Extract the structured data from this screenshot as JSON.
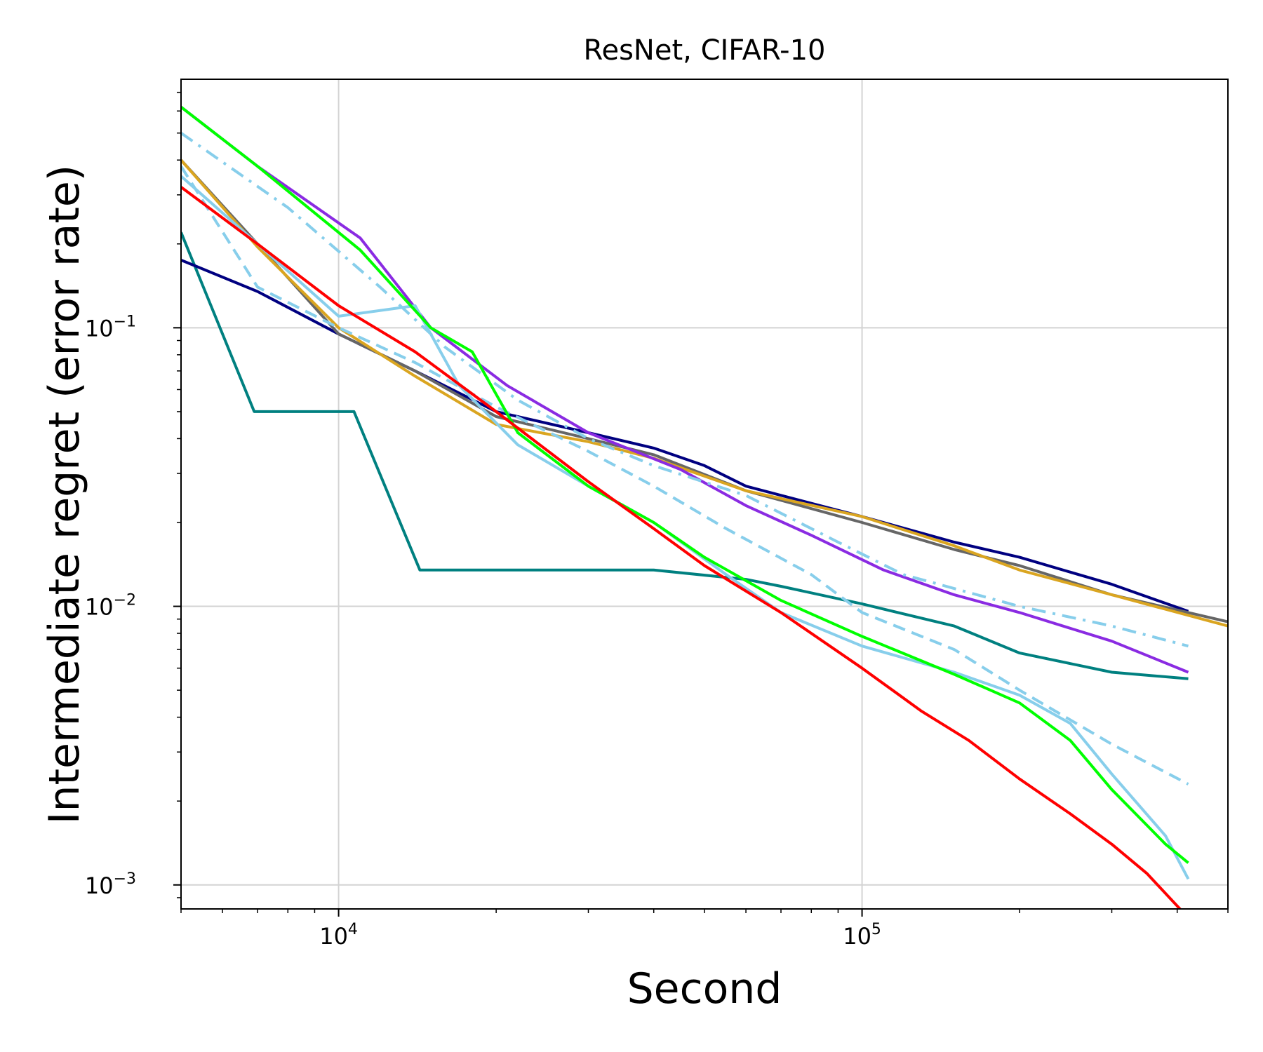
{
  "chart_data": {
    "type": "line",
    "title": "ResNet, CIFAR-10",
    "xlabel": "Second",
    "ylabel": "Intermediate regret (error rate)",
    "xscale": "log",
    "yscale": "log",
    "xlim": [
      5000,
      500000
    ],
    "ylim": [
      0.00082,
      0.78
    ],
    "grid": true,
    "x_ticks": [
      {
        "value": 10000,
        "base": "10",
        "exp": "4"
      },
      {
        "value": 100000,
        "base": "10",
        "exp": "5"
      }
    ],
    "y_ticks": [
      {
        "value": 0.1,
        "base": "10",
        "exp": "−1"
      },
      {
        "value": 0.01,
        "base": "10",
        "exp": "−2"
      },
      {
        "value": 0.001,
        "base": "10",
        "exp": "−3"
      }
    ],
    "series": [
      {
        "name": "teal",
        "color": "#008080",
        "dash": "",
        "x": [
          5000,
          6900,
          10700,
          14300,
          40000,
          60000,
          70000,
          100000,
          150000,
          200000,
          300000,
          420000
        ],
        "y": [
          0.22,
          0.05,
          0.05,
          0.0135,
          0.0135,
          0.0125,
          0.0118,
          0.0102,
          0.0085,
          0.0068,
          0.0058,
          0.0055
        ]
      },
      {
        "name": "navy",
        "color": "#000080",
        "dash": "",
        "x": [
          5000,
          7000,
          10000,
          14000,
          20000,
          30000,
          40000,
          50000,
          60000,
          100000,
          150000,
          200000,
          300000,
          420000
        ],
        "y": [
          0.175,
          0.135,
          0.095,
          0.07,
          0.05,
          0.042,
          0.037,
          0.032,
          0.027,
          0.021,
          0.017,
          0.015,
          0.012,
          0.0096
        ]
      },
      {
        "name": "gray",
        "color": "#666666",
        "dash": "",
        "x": [
          5000,
          7000,
          10000,
          14000,
          20000,
          30000,
          40000,
          60000,
          100000,
          150000,
          200000,
          300000,
          500000
        ],
        "y": [
          0.4,
          0.2,
          0.095,
          0.07,
          0.048,
          0.04,
          0.035,
          0.026,
          0.02,
          0.016,
          0.014,
          0.011,
          0.0088
        ]
      },
      {
        "name": "orange",
        "color": "#DAA520",
        "dash": "",
        "x": [
          5000,
          7000,
          10000,
          14000,
          20000,
          30000,
          40000,
          60000,
          100000,
          150000,
          200000,
          300000,
          500000
        ],
        "y": [
          0.4,
          0.195,
          0.1,
          0.067,
          0.045,
          0.039,
          0.034,
          0.026,
          0.021,
          0.0165,
          0.0135,
          0.011,
          0.0085
        ]
      },
      {
        "name": "purple",
        "color": "#8A2BE2",
        "dash": "",
        "x": [
          5000,
          7000,
          11000,
          15000,
          21000,
          30000,
          45000,
          60000,
          80000,
          110000,
          150000,
          200000,
          300000,
          420000
        ],
        "y": [
          0.62,
          0.38,
          0.21,
          0.1,
          0.062,
          0.042,
          0.031,
          0.023,
          0.018,
          0.0135,
          0.011,
          0.0095,
          0.0075,
          0.0058
        ]
      },
      {
        "name": "skyblue-dashdot",
        "color": "#87CEEB",
        "dash": "20 10 4 10",
        "x": [
          5000,
          8000,
          12000,
          16000,
          22000,
          30000,
          40000,
          60000,
          90000,
          120000,
          200000,
          300000,
          420000
        ],
        "y": [
          0.5,
          0.27,
          0.14,
          0.085,
          0.055,
          0.04,
          0.032,
          0.025,
          0.017,
          0.013,
          0.01,
          0.0085,
          0.0072
        ]
      },
      {
        "name": "skyblue-dashed",
        "color": "#87CEEB",
        "dash": "18 10",
        "x": [
          5000,
          7000,
          10000,
          14000,
          20000,
          30000,
          40000,
          55000,
          80000,
          100000,
          150000,
          200000,
          300000,
          420000
        ],
        "y": [
          0.38,
          0.14,
          0.1,
          0.075,
          0.052,
          0.036,
          0.027,
          0.019,
          0.013,
          0.0095,
          0.007,
          0.005,
          0.0032,
          0.0023
        ]
      },
      {
        "name": "skyblue-solid",
        "color": "#87CEEB",
        "dash": "",
        "x": [
          5000,
          7000,
          10000,
          14000,
          17000,
          22000,
          30000,
          40000,
          55000,
          70000,
          100000,
          150000,
          200000,
          250000,
          300000,
          380000,
          420000
        ],
        "y": [
          0.35,
          0.2,
          0.11,
          0.12,
          0.062,
          0.038,
          0.027,
          0.02,
          0.013,
          0.0095,
          0.0072,
          0.0058,
          0.0048,
          0.0038,
          0.0025,
          0.0015,
          0.00105
        ]
      },
      {
        "name": "green",
        "color": "#00FF00",
        "dash": "",
        "x": [
          5000,
          7000,
          11000,
          15000,
          18000,
          22000,
          30000,
          40000,
          50000,
          70000,
          100000,
          150000,
          200000,
          250000,
          300000,
          380000,
          420000
        ],
        "y": [
          0.62,
          0.38,
          0.19,
          0.1,
          0.082,
          0.042,
          0.027,
          0.02,
          0.015,
          0.0105,
          0.0078,
          0.0057,
          0.0045,
          0.0033,
          0.0022,
          0.0014,
          0.0012
        ]
      },
      {
        "name": "red",
        "color": "#FF0000",
        "dash": "",
        "x": [
          5000,
          7000,
          10000,
          14000,
          20000,
          30000,
          40000,
          50000,
          70000,
          100000,
          130000,
          160000,
          200000,
          250000,
          300000,
          350000,
          410000
        ],
        "y": [
          0.32,
          0.2,
          0.12,
          0.082,
          0.05,
          0.028,
          0.019,
          0.014,
          0.0095,
          0.006,
          0.0042,
          0.0033,
          0.0024,
          0.0018,
          0.0014,
          0.0011,
          0.0008
        ]
      }
    ]
  }
}
